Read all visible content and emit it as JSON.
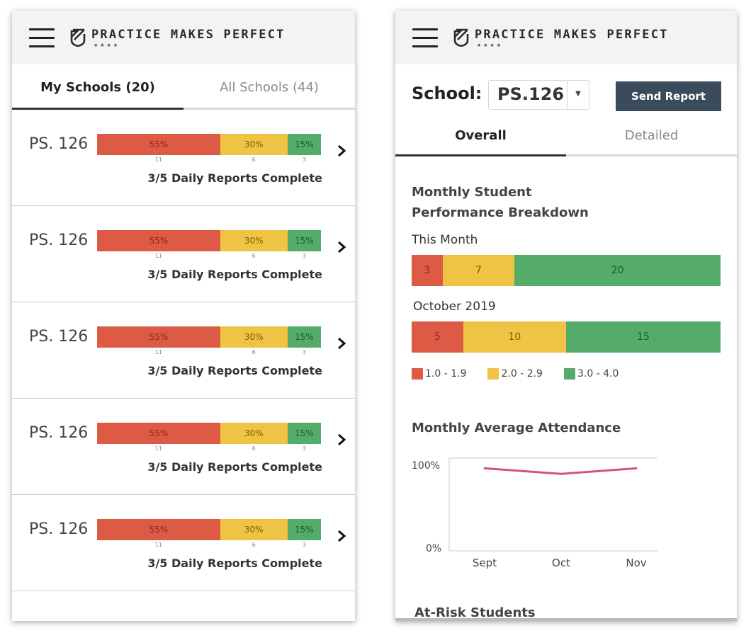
{
  "app": {
    "brand": "PRACTICE MAKES PERFECT",
    "brand_stars": "★★★★"
  },
  "left": {
    "tabs": [
      {
        "label": "My Schools (20)",
        "active": true
      },
      {
        "label": "All Schools (44)",
        "active": false
      }
    ],
    "schools": [
      {
        "name": "PS. 126",
        "segments": [
          {
            "pct_label": "55%",
            "count": "11",
            "fraction": 0.55
          },
          {
            "pct_label": "30%",
            "count": "6",
            "fraction": 0.3
          },
          {
            "pct_label": "15%",
            "count": "3",
            "fraction": 0.15
          }
        ],
        "reports": "3/5 Daily Reports Complete"
      },
      {
        "name": "PS. 126",
        "segments": [
          {
            "pct_label": "55%",
            "count": "11",
            "fraction": 0.55
          },
          {
            "pct_label": "30%",
            "count": "6",
            "fraction": 0.3
          },
          {
            "pct_label": "15%",
            "count": "3",
            "fraction": 0.15
          }
        ],
        "reports": "3/5 Daily Reports Complete"
      },
      {
        "name": "PS. 126",
        "segments": [
          {
            "pct_label": "55%",
            "count": "11",
            "fraction": 0.55
          },
          {
            "pct_label": "30%",
            "count": "6",
            "fraction": 0.3
          },
          {
            "pct_label": "15%",
            "count": "3",
            "fraction": 0.15
          }
        ],
        "reports": "3/5 Daily Reports Complete"
      },
      {
        "name": "PS. 126",
        "segments": [
          {
            "pct_label": "55%",
            "count": "11",
            "fraction": 0.55
          },
          {
            "pct_label": "30%",
            "count": "6",
            "fraction": 0.3
          },
          {
            "pct_label": "15%",
            "count": "3",
            "fraction": 0.15
          }
        ],
        "reports": "3/5 Daily Reports Complete"
      },
      {
        "name": "PS. 126",
        "segments": [
          {
            "pct_label": "55%",
            "count": "11",
            "fraction": 0.55
          },
          {
            "pct_label": "30%",
            "count": "6",
            "fraction": 0.3
          },
          {
            "pct_label": "15%",
            "count": "3",
            "fraction": 0.15
          }
        ],
        "reports": "3/5 Daily Reports Complete"
      }
    ]
  },
  "right": {
    "school_label": "School:",
    "school_value": "PS.126",
    "send_report_label": "Send Report",
    "tabs": [
      {
        "label": "Overall",
        "active": true
      },
      {
        "label": "Detailed",
        "active": false
      }
    ],
    "performance_title_line1": "Monthly Student",
    "performance_title_line2": "Performance Breakdown",
    "attendance_title": "Monthly Average Attendance",
    "at_risk_title": "At-Risk Students"
  },
  "colors": {
    "red": "#dd5a45",
    "yellow": "#efc444",
    "green": "#55ab69",
    "line": "#d4508a",
    "button": "#3a4b5c"
  },
  "chart_data": [
    {
      "type": "bar",
      "orientation": "horizontal-stacked",
      "title": "Monthly Student Performance Breakdown",
      "categories": [
        "This Month",
        "October 2019"
      ],
      "series": [
        {
          "name": "1.0 - 1.9",
          "values": [
            3,
            5
          ]
        },
        {
          "name": "2.0 - 2.9",
          "values": [
            7,
            10
          ]
        },
        {
          "name": "3.0 - 4.0",
          "values": [
            20,
            15
          ]
        }
      ],
      "legend": "bottom"
    },
    {
      "type": "line",
      "title": "Monthly Average Attendance",
      "x": [
        "Sept",
        "Oct",
        "Nov"
      ],
      "series": [
        {
          "name": "Attendance",
          "values": [
            89,
            83,
            89
          ]
        }
      ],
      "ylim": [
        0,
        100
      ],
      "yticks": [
        "0%",
        "100%"
      ]
    }
  ]
}
